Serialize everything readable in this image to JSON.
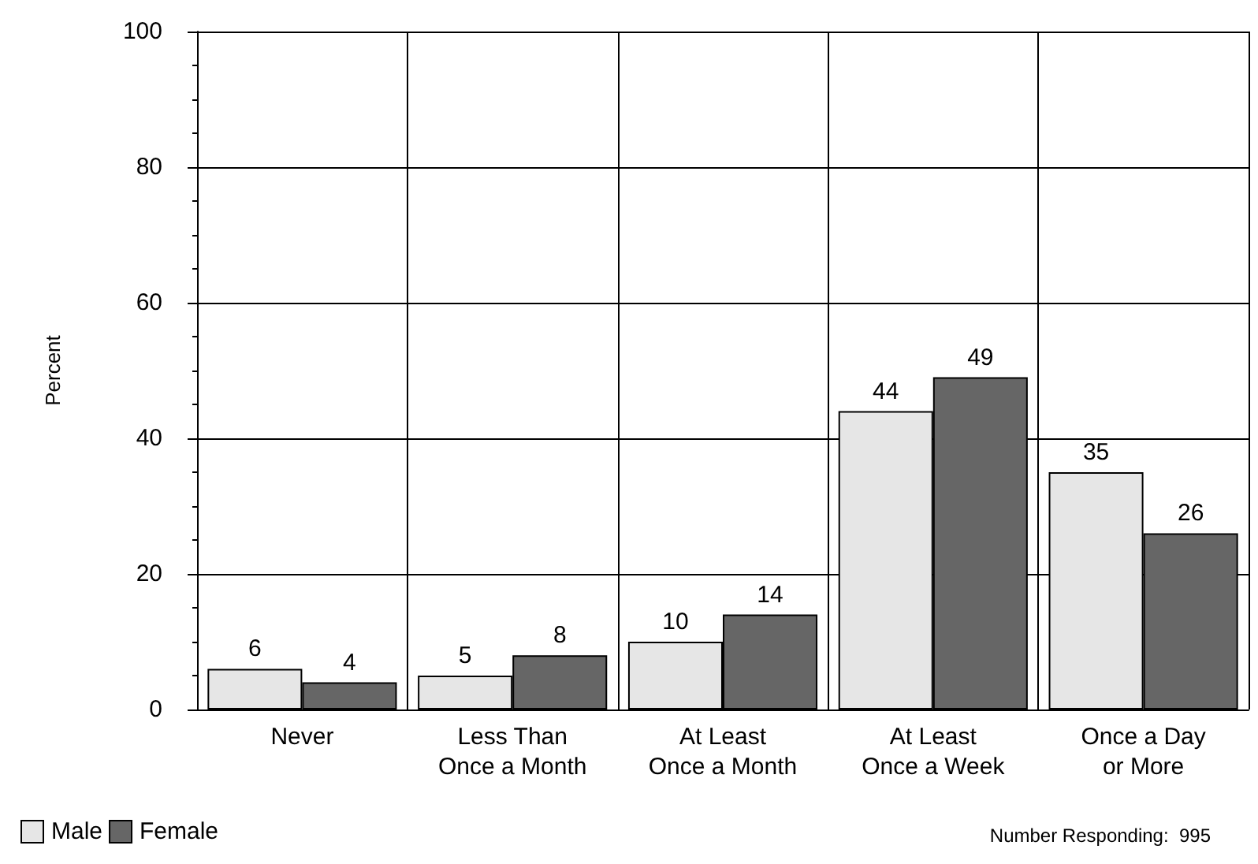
{
  "chart_data": {
    "type": "bar",
    "ylabel": "Percent",
    "categories": [
      "Never",
      "Less Than\nOnce a Month",
      "At Least\nOnce a Month",
      "At Least\nOnce a Week",
      "Once a Day\nor More"
    ],
    "series": [
      {
        "name": "Male",
        "color": "#e6e6e6",
        "values": [
          6,
          5,
          10,
          44,
          35
        ]
      },
      {
        "name": "Female",
        "color": "#666666",
        "values": [
          4,
          8,
          14,
          49,
          26
        ]
      }
    ],
    "ylim": [
      0,
      100
    ],
    "yticks": [
      0,
      20,
      40,
      60,
      80,
      100
    ],
    "grid": true,
    "legend": "bottom left",
    "data_labels": true,
    "annotations": [
      "Number Responding:  995"
    ]
  }
}
